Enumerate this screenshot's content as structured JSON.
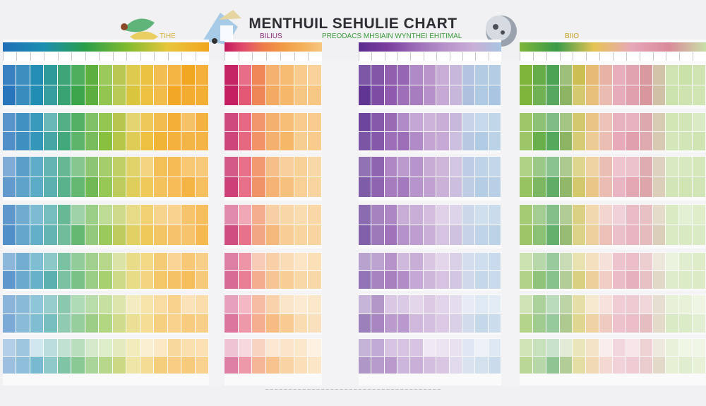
{
  "header": {
    "title": "MENTHUIL SEHULIE CHART",
    "subtitles": [
      {
        "text": "BILIUS",
        "color": "#8b2a7a"
      },
      {
        "text": "TIHE",
        "color": "#d4b03a"
      },
      {
        "text": "PREODACS MHSIAIN WYNTHEI EHITIMAL",
        "color": "#3a9a3a"
      },
      {
        "text": "BIIO",
        "color": "#c4a020"
      }
    ]
  },
  "panels": [
    {
      "name": "panel-1",
      "palette": [
        "#1f6fb8",
        "#1c8fb0",
        "#2a9e4a",
        "#7fba2e",
        "#e8c63c",
        "#f2a51e"
      ]
    },
    {
      "name": "panel-2",
      "palette": [
        "#c2185b",
        "#e14d6b",
        "#ee7d4a",
        "#f19a45",
        "#f4b05a",
        "#f6c680"
      ]
    },
    {
      "name": "panel-3",
      "palette": [
        "#5b2d8f",
        "#7a3d9e",
        "#9c6cb8",
        "#b691c9",
        "#c9aed6",
        "#a8c4e0"
      ]
    },
    {
      "name": "panel-4",
      "palette": [
        "#7fb53a",
        "#3a9a48",
        "#e6c454",
        "#e6a8b8",
        "#d98a9a",
        "#c9e0a8"
      ]
    }
  ],
  "footer": {
    "text": "— — — — — — — — — — — — — — — — — — — — — — — — — — — — — — — — — — — — — —"
  },
  "decorations": [
    "leaf-icon",
    "bird-icon",
    "moon-icon"
  ]
}
